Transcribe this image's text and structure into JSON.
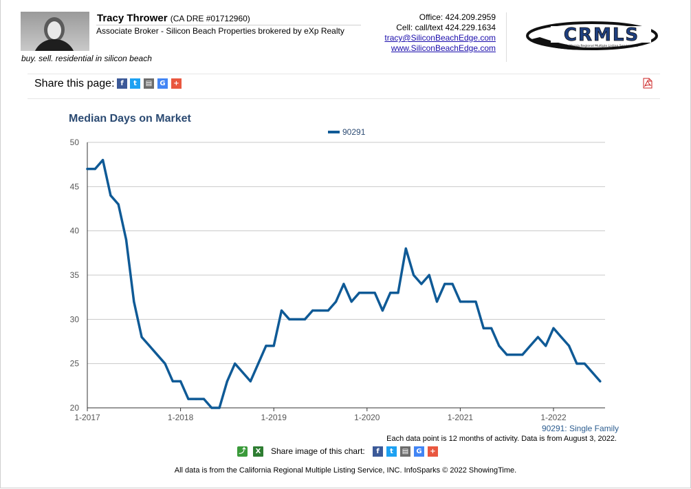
{
  "header": {
    "agent_name": "Tracy Thrower",
    "dre": "(CA DRE #01712960)",
    "agent_title": "Associate Broker - Silicon Beach Properties brokered by eXp Realty",
    "tagline": "buy. sell. residential in silicon beach",
    "office": "Office: 424.209.2959",
    "cell": "Cell: call/text 424.229.1634",
    "email": "tracy@SiliconBeachEdge.com",
    "website": "www.SiliconBeachEdge.com",
    "logo_text": "CRMLS",
    "logo_subtext": "California Regional Multiple Listing Service, Inc."
  },
  "share_bar": {
    "label": "Share this page:",
    "icons": [
      "facebook-icon",
      "twitter-icon",
      "print-icon",
      "google-icon",
      "plus-icon",
      "pdf-icon"
    ]
  },
  "chart_data": {
    "type": "line",
    "title": "Median Days on Market",
    "xlabel": "",
    "ylabel": "",
    "ylim": [
      20,
      50
    ],
    "yticks": [
      20,
      25,
      30,
      35,
      40,
      45,
      50
    ],
    "xticks": [
      "1-2017",
      "1-2018",
      "1-2019",
      "1-2020",
      "1-2021",
      "1-2022"
    ],
    "grid": true,
    "legend_position": "top-center",
    "series": [
      {
        "name": "90291",
        "color": "#0f5a96",
        "start": "1-2017",
        "values": [
          47,
          47,
          48,
          44,
          43,
          39,
          32,
          28,
          27,
          26,
          25,
          23,
          23,
          21,
          21,
          21,
          20,
          20,
          23,
          25,
          24,
          23,
          25,
          27,
          27,
          31,
          30,
          30,
          30,
          31,
          31,
          31,
          32,
          34,
          32,
          33,
          33,
          33,
          31,
          33,
          33,
          38,
          35,
          34,
          35,
          32,
          34,
          34,
          32,
          32,
          32,
          29,
          29,
          27,
          26,
          26,
          26,
          27,
          28,
          27,
          29,
          28,
          27,
          25,
          25,
          24,
          23
        ]
      }
    ]
  },
  "chart_footer": {
    "series_note": "90291: Single Family",
    "data_note": "Each data point is 12 months of activity. Data is from August 3, 2022.",
    "share_image_label": "Share image of this chart:",
    "source": "All data is from the California Regional Multiple Listing Service, INC. InfoSparks © 2022 ShowingTime."
  },
  "colors": {
    "facebook": "#3b5998",
    "twitter": "#1da1f2",
    "print": "#6d6d6d",
    "google": "#4285f4",
    "plus": "#e9573f",
    "title": "#2b4a72",
    "line": "#0f5a96"
  }
}
